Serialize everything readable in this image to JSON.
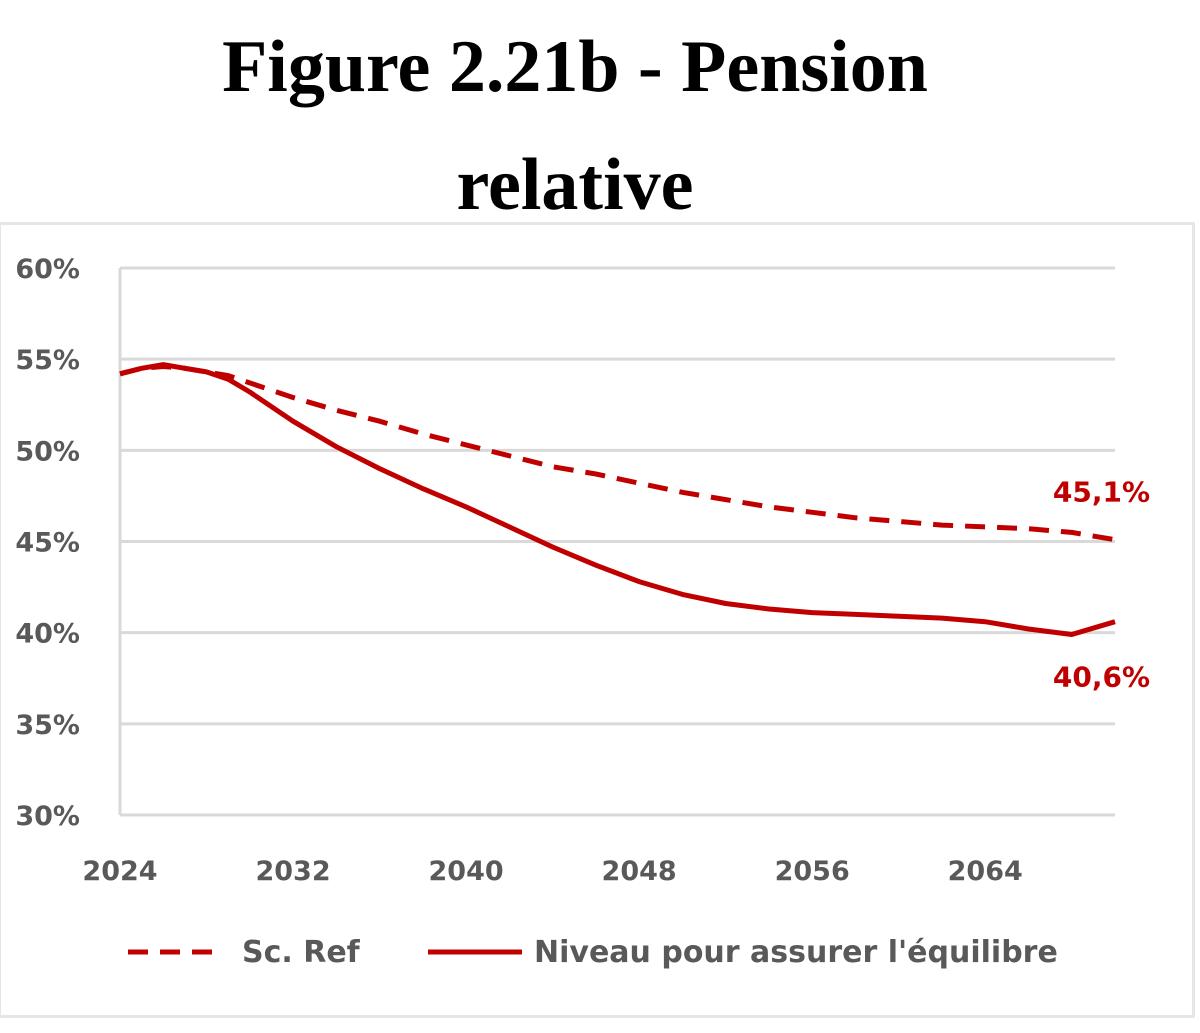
{
  "chart_data": {
    "type": "line",
    "title_line1": "Figure 2.21b - Pension",
    "title_line2": "relative",
    "x_tick_labels": [
      "2024",
      "2032",
      "2040",
      "2048",
      "2056",
      "2064"
    ],
    "y_tick_labels": [
      "60%",
      "55%",
      "50%",
      "45%",
      "40%",
      "35%",
      "30%"
    ],
    "xlim": [
      2024,
      2070
    ],
    "ylim": [
      30,
      60
    ],
    "grid": true,
    "legend_position": "bottom",
    "series": [
      {
        "name": "Sc. Ref",
        "style": "dashed",
        "color": "#c00000",
        "end_label": "45,1%",
        "x": [
          2024,
          2025,
          2026,
          2027,
          2028,
          2029,
          2030,
          2032,
          2034,
          2036,
          2038,
          2040,
          2042,
          2044,
          2046,
          2048,
          2050,
          2052,
          2054,
          2056,
          2058,
          2060,
          2062,
          2064,
          2066,
          2068,
          2070
        ],
        "values": [
          54.2,
          54.5,
          54.6,
          54.5,
          54.3,
          54.1,
          53.7,
          52.9,
          52.2,
          51.6,
          50.9,
          50.3,
          49.7,
          49.1,
          48.7,
          48.2,
          47.7,
          47.3,
          46.9,
          46.6,
          46.3,
          46.1,
          45.9,
          45.8,
          45.7,
          45.5,
          45.1
        ]
      },
      {
        "name": "Niveau pour assurer l'équilibre",
        "style": "solid",
        "color": "#c00000",
        "end_label": "40,6%",
        "x": [
          2024,
          2025,
          2026,
          2027,
          2028,
          2029,
          2030,
          2032,
          2034,
          2036,
          2038,
          2040,
          2042,
          2044,
          2046,
          2048,
          2050,
          2052,
          2054,
          2056,
          2058,
          2060,
          2062,
          2064,
          2066,
          2068,
          2070
        ],
        "values": [
          54.2,
          54.5,
          54.7,
          54.5,
          54.3,
          53.9,
          53.2,
          51.6,
          50.2,
          49.0,
          47.9,
          46.9,
          45.8,
          44.7,
          43.7,
          42.8,
          42.1,
          41.6,
          41.3,
          41.1,
          41.0,
          40.9,
          40.8,
          40.6,
          40.2,
          39.9,
          40.6
        ]
      }
    ]
  }
}
